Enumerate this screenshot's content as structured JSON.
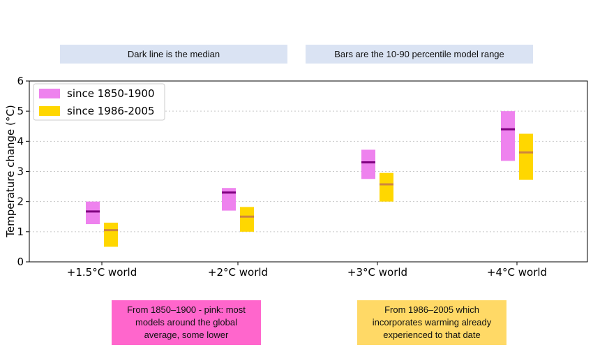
{
  "banners": {
    "left": "Dark line is the median",
    "right": "Bars are the 10-90 percentile model range"
  },
  "notes": {
    "pink": "From 1850–1900 - pink: most models around the global average, some lower",
    "yellow": "From 1986–2005 which incorporates warming already experienced to that date"
  },
  "colors": {
    "pink_bar": "#ee82ee",
    "pink_median": "#800080",
    "yellow_bar": "#ffd700",
    "yellow_median": "#cd853f",
    "pink_note": "#ff66cc",
    "yellow_note": "#ffd966",
    "banner": "#dae3f3"
  },
  "chart_data": {
    "type": "bar",
    "subtype": "floating-range-with-median",
    "categories": [
      "+1.5°C world",
      "+2°C world",
      "+3°C world",
      "+4°C world"
    ],
    "ylabel": "Temperature change (°C)",
    "xlabel": "",
    "ylim": [
      0,
      6
    ],
    "yticks": [
      0,
      1,
      2,
      3,
      4,
      5,
      6
    ],
    "grid": "horizontal dotted",
    "legend_position": "top-left",
    "series": [
      {
        "name": "since 1850-1900",
        "low": [
          1.25,
          1.7,
          2.75,
          3.35
        ],
        "high": [
          2.0,
          2.45,
          3.72,
          5.0
        ],
        "median": [
          1.67,
          2.3,
          3.3,
          4.4
        ]
      },
      {
        "name": "since 1986-2005",
        "low": [
          0.5,
          1.0,
          2.0,
          2.72
        ],
        "high": [
          1.3,
          1.82,
          2.95,
          4.25
        ],
        "median": [
          1.05,
          1.5,
          2.57,
          3.63
        ]
      }
    ]
  }
}
